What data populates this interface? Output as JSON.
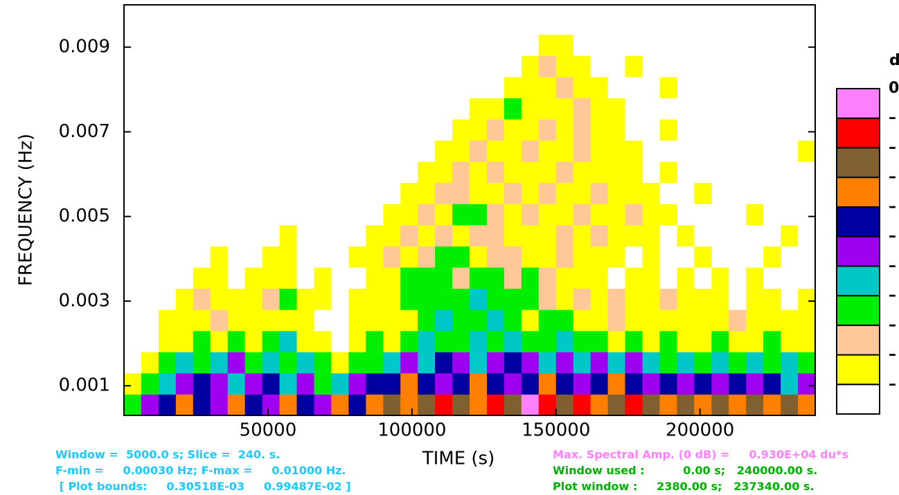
{
  "chart_data": {
    "type": "heatmap",
    "ylabel": "FREQUENCY (Hz)",
    "xlabel": "TIME (s)",
    "xlim": [
      0,
      240000
    ],
    "ylim": [
      0.0003,
      0.01
    ],
    "xticks": [
      50000,
      100000,
      150000,
      200000
    ],
    "yticks": [
      0.001,
      0.003,
      0.005,
      0.007,
      0.009
    ],
    "x": [
      3000,
      9000,
      15000,
      21000,
      27000,
      33000,
      39000,
      45000,
      51000,
      57000,
      63000,
      69000,
      75000,
      81000,
      87000,
      93000,
      99000,
      105000,
      111000,
      117000,
      123000,
      129000,
      135000,
      141000,
      147000,
      153000,
      159000,
      165000,
      171000,
      177000,
      183000,
      189000,
      195000,
      201000,
      207000,
      213000,
      219000,
      225000,
      231000,
      237000
    ],
    "y": [
      0.00055,
      0.00105,
      0.00155,
      0.00205,
      0.00255,
      0.00305,
      0.00355,
      0.00405,
      0.00455,
      0.00505,
      0.00555,
      0.00605,
      0.00655,
      0.00705,
      0.00755,
      0.00805,
      0.00855,
      0.00905,
      0.00955
    ],
    "values": [
      [
        3,
        5,
        6,
        7,
        6,
        5,
        7,
        6,
        5,
        7,
        6,
        5,
        7,
        6,
        7,
        8,
        7,
        8,
        9,
        8,
        7,
        9,
        8,
        10,
        9,
        8,
        9,
        7,
        8,
        9,
        8,
        7,
        8,
        7,
        8,
        7,
        8,
        7,
        8,
        7
      ],
      [
        1,
        3,
        4,
        5,
        6,
        5,
        4,
        5,
        6,
        4,
        5,
        3,
        4,
        5,
        6,
        6,
        7,
        6,
        5,
        6,
        7,
        6,
        5,
        6,
        7,
        6,
        5,
        6,
        7,
        6,
        5,
        6,
        5,
        6,
        5,
        6,
        5,
        6,
        4,
        5
      ],
      [
        0,
        1,
        3,
        4,
        3,
        4,
        5,
        3,
        4,
        3,
        4,
        3,
        1,
        3,
        3,
        4,
        5,
        4,
        6,
        5,
        4,
        5,
        6,
        5,
        4,
        5,
        4,
        5,
        4,
        5,
        4,
        3,
        4,
        3,
        4,
        3,
        4,
        3,
        4,
        3
      ],
      [
        0,
        0,
        1,
        1,
        3,
        1,
        3,
        1,
        3,
        4,
        1,
        1,
        0,
        1,
        3,
        1,
        3,
        4,
        3,
        3,
        4,
        3,
        4,
        3,
        3,
        4,
        3,
        3,
        1,
        3,
        1,
        3,
        1,
        1,
        3,
        1,
        1,
        3,
        1,
        1
      ],
      [
        0,
        0,
        1,
        1,
        1,
        2,
        1,
        1,
        1,
        1,
        1,
        0,
        0,
        1,
        1,
        1,
        1,
        3,
        4,
        3,
        3,
        4,
        3,
        1,
        3,
        3,
        1,
        1,
        2,
        1,
        1,
        1,
        1,
        1,
        1,
        2,
        1,
        1,
        1,
        1
      ],
      [
        0,
        0,
        0,
        1,
        2,
        1,
        1,
        1,
        2,
        3,
        1,
        1,
        0,
        1,
        1,
        1,
        3,
        3,
        3,
        3,
        4,
        3,
        3,
        3,
        2,
        1,
        2,
        1,
        2,
        1,
        1,
        2,
        1,
        1,
        1,
        0,
        1,
        1,
        0,
        1
      ],
      [
        0,
        0,
        0,
        0,
        1,
        1,
        0,
        1,
        1,
        1,
        0,
        1,
        0,
        0,
        1,
        1,
        3,
        3,
        3,
        2,
        3,
        3,
        2,
        3,
        2,
        1,
        1,
        1,
        0,
        1,
        1,
        0,
        1,
        0,
        1,
        0,
        1,
        0,
        0,
        0
      ],
      [
        0,
        0,
        0,
        0,
        0,
        1,
        0,
        0,
        1,
        1,
        0,
        0,
        0,
        1,
        1,
        2,
        1,
        2,
        3,
        3,
        1,
        2,
        2,
        1,
        1,
        2,
        1,
        1,
        1,
        0,
        1,
        0,
        0,
        1,
        0,
        0,
        0,
        1,
        0,
        0
      ],
      [
        0,
        0,
        0,
        0,
        0,
        0,
        0,
        0,
        0,
        1,
        0,
        0,
        0,
        0,
        1,
        1,
        2,
        1,
        2,
        1,
        2,
        2,
        1,
        1,
        1,
        2,
        1,
        2,
        1,
        1,
        1,
        0,
        1,
        0,
        0,
        0,
        0,
        0,
        1,
        0
      ],
      [
        0,
        0,
        0,
        0,
        0,
        0,
        0,
        0,
        0,
        0,
        0,
        0,
        0,
        0,
        0,
        1,
        1,
        2,
        1,
        3,
        3,
        2,
        1,
        2,
        1,
        1,
        2,
        1,
        1,
        2,
        1,
        1,
        0,
        0,
        0,
        0,
        1,
        0,
        0,
        0
      ],
      [
        0,
        0,
        0,
        0,
        0,
        0,
        0,
        0,
        0,
        0,
        0,
        0,
        0,
        0,
        0,
        0,
        1,
        1,
        2,
        2,
        1,
        1,
        2,
        1,
        2,
        1,
        1,
        2,
        1,
        1,
        1,
        0,
        0,
        1,
        0,
        0,
        0,
        0,
        0,
        0
      ],
      [
        0,
        0,
        0,
        0,
        0,
        0,
        0,
        0,
        0,
        0,
        0,
        0,
        0,
        0,
        0,
        0,
        0,
        1,
        1,
        2,
        1,
        2,
        1,
        1,
        1,
        2,
        1,
        1,
        1,
        1,
        0,
        1,
        0,
        0,
        0,
        0,
        0,
        0,
        0,
        0
      ],
      [
        0,
        0,
        0,
        0,
        0,
        0,
        0,
        0,
        0,
        0,
        0,
        0,
        0,
        0,
        0,
        0,
        0,
        0,
        1,
        1,
        2,
        1,
        1,
        2,
        1,
        1,
        2,
        1,
        1,
        1,
        0,
        0,
        0,
        0,
        0,
        0,
        0,
        0,
        0,
        1
      ],
      [
        0,
        0,
        0,
        0,
        0,
        0,
        0,
        0,
        0,
        0,
        0,
        0,
        0,
        0,
        0,
        0,
        0,
        0,
        0,
        1,
        1,
        2,
        1,
        1,
        2,
        1,
        2,
        1,
        1,
        0,
        0,
        1,
        0,
        0,
        0,
        0,
        0,
        0,
        0,
        0
      ],
      [
        0,
        0,
        0,
        0,
        0,
        0,
        0,
        0,
        0,
        0,
        0,
        0,
        0,
        0,
        0,
        0,
        0,
        0,
        0,
        0,
        1,
        1,
        3,
        1,
        1,
        1,
        2,
        1,
        1,
        0,
        0,
        0,
        0,
        0,
        0,
        0,
        0,
        0,
        0,
        0
      ],
      [
        0,
        0,
        0,
        0,
        0,
        0,
        0,
        0,
        0,
        0,
        0,
        0,
        0,
        0,
        0,
        0,
        0,
        0,
        0,
        0,
        0,
        0,
        1,
        1,
        1,
        2,
        1,
        1,
        0,
        0,
        0,
        1,
        0,
        0,
        0,
        0,
        0,
        0,
        0,
        0
      ],
      [
        0,
        0,
        0,
        0,
        0,
        0,
        0,
        0,
        0,
        0,
        0,
        0,
        0,
        0,
        0,
        0,
        0,
        0,
        0,
        0,
        0,
        0,
        0,
        1,
        2,
        1,
        1,
        0,
        0,
        1,
        0,
        0,
        0,
        0,
        0,
        0,
        0,
        0,
        0,
        0
      ],
      [
        0,
        0,
        0,
        0,
        0,
        0,
        0,
        0,
        0,
        0,
        0,
        0,
        0,
        0,
        0,
        0,
        0,
        0,
        0,
        0,
        0,
        0,
        0,
        0,
        1,
        1,
        0,
        0,
        0,
        0,
        0,
        0,
        0,
        0,
        0,
        0,
        0,
        0,
        0,
        0
      ],
      [
        0,
        0,
        0,
        0,
        0,
        0,
        0,
        0,
        0,
        0,
        0,
        0,
        0,
        0,
        0,
        0,
        0,
        0,
        0,
        0,
        0,
        0,
        0,
        0,
        0,
        0,
        0,
        0,
        0,
        0,
        0,
        0,
        0,
        0,
        0,
        0,
        0,
        0,
        0,
        0
      ]
    ],
    "colorbar": {
      "title": "d",
      "colors": [
        "#ffffff",
        "#ffff00",
        "#ffc896",
        "#00ee00",
        "#00c8c8",
        "#a000f0",
        "#0000a0",
        "#ff8000",
        "#806030",
        "#ff0000",
        "#ff80ff"
      ],
      "labels": [
        "0",
        "–",
        "–",
        "–",
        "–",
        "–",
        "–",
        "–",
        "–",
        "–",
        "–"
      ]
    },
    "notes_left": [
      "Window =  5000.0 s; Slice =  240. s.",
      "F-min =     0.00030 Hz; F-max =     0.01000 Hz.",
      " [ Plot bounds:     0.30518E-03     0.99487E-02 ]"
    ],
    "note_amp": "Max. Spectral Amp. (0 dB) =     0.930E+04 du*s",
    "notes_right": [
      "Window used :          0.00 s;   240000.00 s.",
      "Plot window :     2380.00 s;   237340.00 s."
    ]
  }
}
